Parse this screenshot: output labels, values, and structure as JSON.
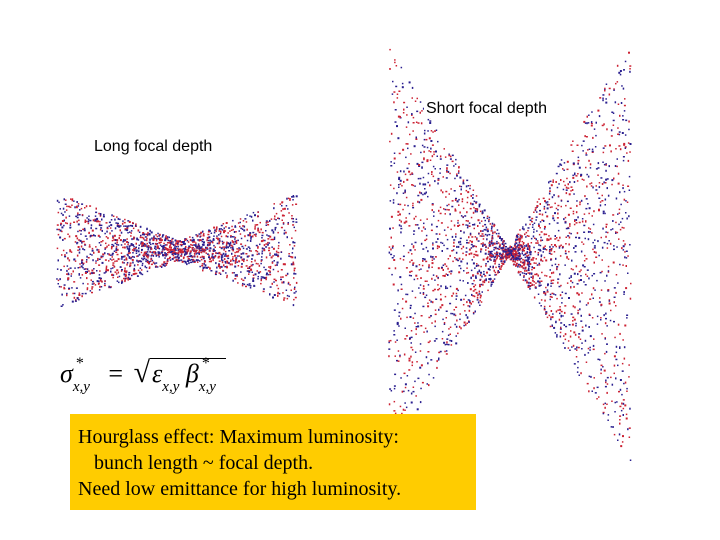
{
  "labels": {
    "long": "Long focal depth",
    "short": "Short focal depth"
  },
  "formula": {
    "lhs": "σ",
    "lhs_sub": "x,y",
    "star": "*",
    "equals": "=",
    "sqrt": "√",
    "eps": "ε",
    "eps_sub": "x,y",
    "beta": "β",
    "beta_sub": "x,y"
  },
  "note": {
    "line1": "Hourglass effect: Maximum luminosity:",
    "line2": "bunch length ~ focal depth.",
    "line3": "Need low emittance for high luminosity."
  },
  "colors": {
    "red": "#cc2233",
    "blue": "#2a1f8f",
    "highlight": "#ffcc00"
  }
}
